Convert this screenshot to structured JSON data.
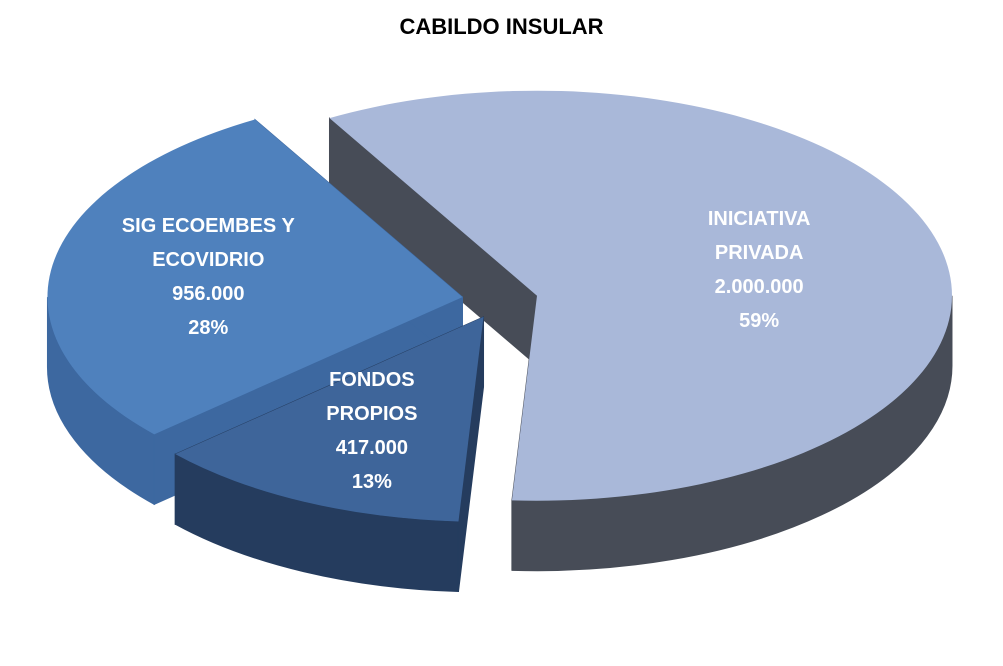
{
  "chart_data": {
    "type": "pie3d",
    "title": "CABILDO INSULAR",
    "categories": [
      "INICIATIVA PRIVADA",
      "FONDOS PROPIOS",
      "SIG ECOEMBES Y ECOVIDRIO"
    ],
    "values": [
      2000000,
      417000,
      956000
    ],
    "value_labels": [
      "2.000.000",
      "417.000",
      "956.000"
    ],
    "percent_labels": [
      "59%",
      "13%",
      "28%"
    ],
    "colors": [
      "#a9b8d9",
      "#3e659a",
      "#4f81bd"
    ],
    "side_colors": [
      "#474c57",
      "#253c5e",
      "#3d68a0"
    ]
  }
}
